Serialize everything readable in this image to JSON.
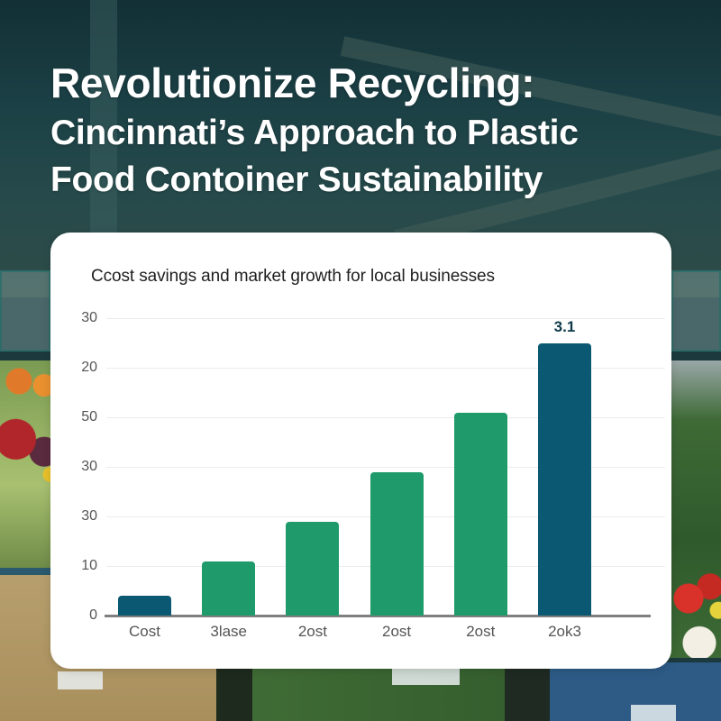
{
  "headline": {
    "line1": "Revolutionize Recycling:",
    "line2": "Cincinnati’s Approach to Plastic",
    "line3": "Food Contoiner Sustainability"
  },
  "colors": {
    "dark_bar": "#0a5872",
    "green_bar": "#1e9a6b",
    "card_bg": "#ffffff",
    "headline_text": "#ffffff"
  },
  "chart_data": {
    "type": "bar",
    "title": "Ccost savings and market growth for local businesses",
    "xlabel": "",
    "ylabel": "",
    "y_tick_labels": [
      "30",
      "20",
      "50",
      "30",
      "30",
      "10",
      "0"
    ],
    "categories": [
      "Cost",
      "3lase",
      "2ost",
      "2ost",
      "2ost",
      "2ok3"
    ],
    "values": [
      4,
      11,
      19,
      29,
      41,
      55
    ],
    "bar_colors": [
      "#0a5872",
      "#1e9a6b",
      "#1e9a6b",
      "#1e9a6b",
      "#1e9a6b",
      "#0a5872"
    ],
    "annotations": [
      {
        "category_index": 5,
        "text": "3.1"
      }
    ],
    "ylim": [
      0,
      60
    ],
    "grid": true,
    "legend": "none"
  }
}
